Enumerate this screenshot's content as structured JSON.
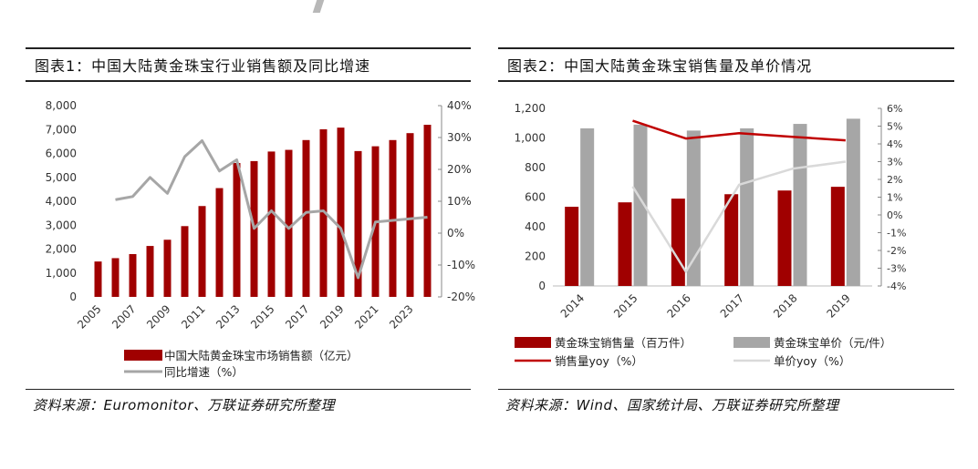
{
  "left": {
    "title": "图表1：中国大陆黄金珠宝行业销售额及同比增速",
    "source": "资料来源：Euromonitor、万联证券研究所整理"
  },
  "right": {
    "title": "图表2：中国大陆黄金珠宝销售量及单价情况",
    "source": "资料来源：Wind、国家统计局、万联证券研究所整理"
  },
  "colors": {
    "red": "#a00000",
    "gray": "#a6a6a6",
    "lightgray": "#d9d9d9",
    "line_red": "#c00000"
  },
  "chart_data": [
    {
      "type": "bar",
      "x": [
        2005,
        2006,
        2007,
        2008,
        2009,
        2010,
        2011,
        2012,
        2013,
        2014,
        2015,
        2016,
        2017,
        2018,
        2019,
        2020,
        2021,
        2022,
        2023,
        2024
      ],
      "x_tick_labels": [
        "2005",
        "2007",
        "2009",
        "2011",
        "2013",
        "2015",
        "2017",
        "2019",
        "2021",
        "2023"
      ],
      "series": [
        {
          "name": "中国大陆黄金珠宝市场销售额（亿元）",
          "kind": "bar",
          "axis": "left",
          "values": [
            1480,
            1620,
            1790,
            2130,
            2390,
            2960,
            3800,
            4550,
            5600,
            5680,
            6080,
            6150,
            6560,
            7010,
            7080,
            6100,
            6300,
            6560,
            6850,
            7200
          ]
        },
        {
          "name": "同比增速（%）",
          "kind": "line",
          "axis": "right",
          "values": [
            null,
            10.5,
            11.5,
            17.5,
            12.5,
            24,
            29,
            19.5,
            23,
            1.5,
            7,
            1.5,
            6.5,
            7,
            1.5,
            -14,
            3.5,
            4,
            4.5,
            5
          ]
        }
      ],
      "y_left": {
        "min": 0,
        "max": 8000,
        "ticks": [
          "0",
          "1,000",
          "2,000",
          "3,000",
          "4,000",
          "5,000",
          "6,000",
          "7,000",
          "8,000"
        ]
      },
      "y_right": {
        "min": -20,
        "max": 40,
        "ticks": [
          "-20%",
          "-10%",
          "0%",
          "10%",
          "20%",
          "30%",
          "40%"
        ]
      },
      "legend_position": "bottom"
    },
    {
      "type": "bar",
      "categories": [
        "2014",
        "2015",
        "2016",
        "2017",
        "2018",
        "2019"
      ],
      "series": [
        {
          "name": "黄金珠宝销售量（百万件）",
          "kind": "bar",
          "axis": "left",
          "values": [
            535,
            565,
            590,
            620,
            645,
            670
          ]
        },
        {
          "name": "黄金珠宝单价（元/件）",
          "kind": "bar",
          "axis": "left",
          "values": [
            1065,
            1090,
            1050,
            1065,
            1095,
            1130
          ]
        },
        {
          "name": "销售量yoy（%）",
          "kind": "line",
          "axis": "right",
          "values": [
            null,
            5.3,
            4.3,
            4.6,
            4.4,
            4.2
          ]
        },
        {
          "name": "单价yoy（%）",
          "kind": "line",
          "axis": "right",
          "values": [
            null,
            1.6,
            -3.2,
            1.7,
            2.6,
            3.0
          ]
        }
      ],
      "y_left": {
        "min": 0,
        "max": 1200,
        "ticks": [
          "0",
          "200",
          "400",
          "600",
          "800",
          "1,000",
          "1,200"
        ]
      },
      "y_right": {
        "min": -4,
        "max": 6,
        "ticks": [
          "-4%",
          "-3%",
          "-2%",
          "-1%",
          "0%",
          "1%",
          "2%",
          "3%",
          "4%",
          "5%",
          "6%"
        ]
      },
      "legend_position": "bottom"
    }
  ]
}
